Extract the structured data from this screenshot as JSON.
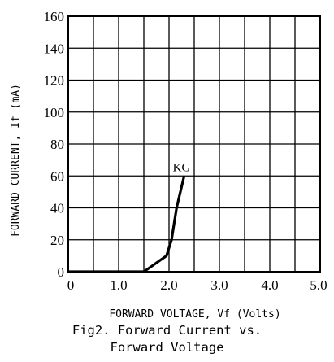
{
  "chart_data": {
    "type": "line",
    "title": "",
    "xlabel": "FORWARD VOLTAGE, Vf (Volts)",
    "ylabel": "FORWARD CURRENT, If (mA)",
    "xlim": [
      0,
      5.0
    ],
    "ylim": [
      0,
      160
    ],
    "x_ticks": [
      0,
      0.5,
      1.0,
      1.5,
      2.0,
      2.5,
      3.0,
      3.5,
      4.0,
      4.5,
      5.0
    ],
    "x_tick_labels": [
      "0",
      "",
      "1.0",
      "",
      "2.0",
      "",
      "3.0",
      "",
      "4.0",
      "",
      "5.0"
    ],
    "y_ticks": [
      0,
      20,
      40,
      60,
      80,
      100,
      120,
      140,
      160
    ],
    "y_tick_labels": [
      "0",
      "20",
      "40",
      "60",
      "80",
      "100",
      "120",
      "140",
      "160"
    ],
    "grid": true,
    "series": [
      {
        "name": "KG",
        "x": [
          0,
          1.5,
          1.95,
          2.05,
          2.15,
          2.3
        ],
        "y": [
          0,
          0,
          10,
          20,
          40,
          60
        ]
      }
    ],
    "annotations": [
      {
        "text": "KG",
        "x": 2.25,
        "y": 63
      }
    ]
  },
  "caption": {
    "line1": "Fig2. Forward Current vs.",
    "line2": "Forward Voltage"
  }
}
